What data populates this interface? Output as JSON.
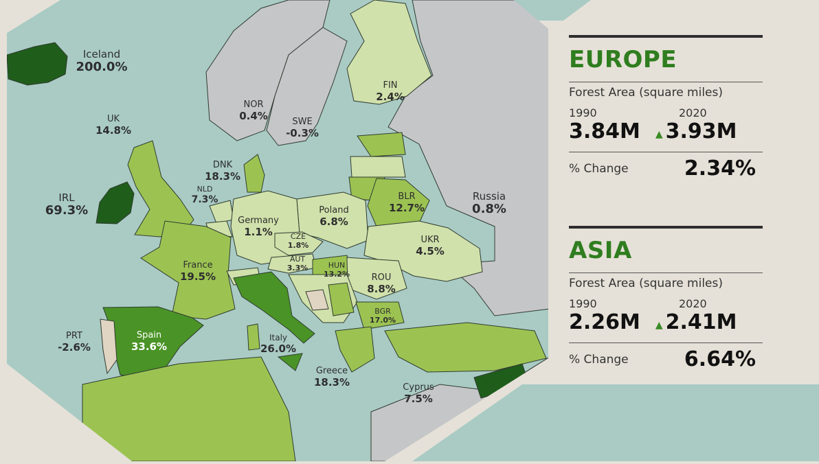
{
  "colors": {
    "sea": "#a9cbc4",
    "no_data": "#c5c6c8",
    "low": "#d0e1ab",
    "mid": "#9cc352",
    "high": "#4a9326",
    "very_high": "#1f5d1b",
    "negative": "#e0d4c3",
    "accent": "#2f7d1f"
  },
  "map": {
    "labels": [
      {
        "name": "Iceland",
        "value": "200.0%"
      },
      {
        "name": "UK",
        "value": "14.8%"
      },
      {
        "name": "IRL",
        "value": "69.3%"
      },
      {
        "name": "NOR",
        "value": "0.4%"
      },
      {
        "name": "SWE",
        "value": "-0.3%"
      },
      {
        "name": "FIN",
        "value": "2.4%"
      },
      {
        "name": "DNK",
        "value": "18.3%"
      },
      {
        "name": "NLD",
        "value": "7.3%"
      },
      {
        "name": "Germany",
        "value": "1.1%"
      },
      {
        "name": "Poland",
        "value": "6.8%"
      },
      {
        "name": "BLR",
        "value": "12.7%"
      },
      {
        "name": "Russia",
        "value": "0.8%"
      },
      {
        "name": "UKR",
        "value": "4.5%"
      },
      {
        "name": "CZE",
        "value": "1.8%"
      },
      {
        "name": "AUT",
        "value": "3.3%"
      },
      {
        "name": "HUN",
        "value": "13.2%"
      },
      {
        "name": "ROU",
        "value": "8.8%"
      },
      {
        "name": "France",
        "value": "19.5%"
      },
      {
        "name": "BGR",
        "value": "17.0%"
      },
      {
        "name": "PRT",
        "value": "-2.6%"
      },
      {
        "name": "Spain",
        "value": "33.6%"
      },
      {
        "name": "Italy",
        "value": "26.0%"
      },
      {
        "name": "Greece",
        "value": "18.3%"
      },
      {
        "name": "Cyprus",
        "value": "7.5%"
      }
    ]
  },
  "panels": [
    {
      "title": "EUROPE",
      "subtitle": "Forest Area (square miles)",
      "year1": "1990",
      "year2": "2020",
      "value1": "3.84M",
      "value2": "3.93M",
      "trend_icon": "triangle-up",
      "change_label": "% Change",
      "change": "2.34%"
    },
    {
      "title": "ASIA",
      "subtitle": "Forest Area (square miles)",
      "year1": "1990",
      "year2": "2020",
      "value1": "2.26M",
      "value2": "2.41M",
      "trend_icon": "triangle-up",
      "change_label": "% Change",
      "change": "6.64%"
    }
  ]
}
